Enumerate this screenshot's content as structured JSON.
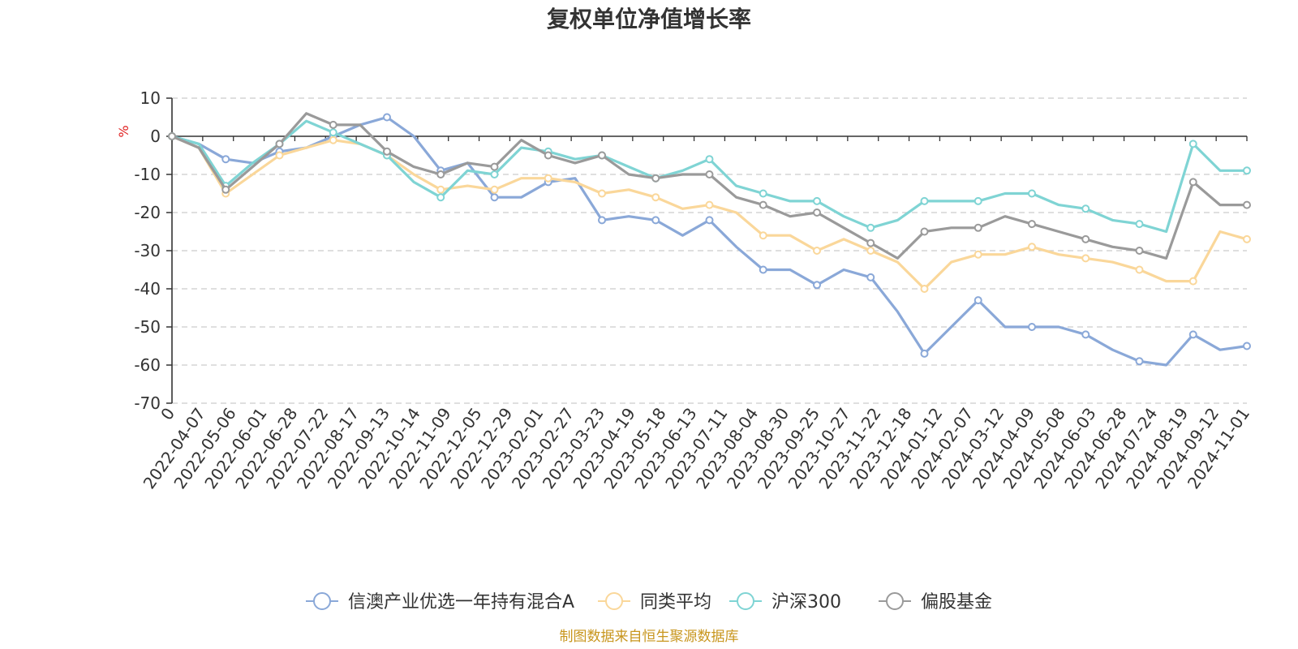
{
  "chart_data": {
    "type": "line",
    "title": "复权单位净值增长率",
    "ylabel": "%",
    "ylim": [
      -70,
      10
    ],
    "yticks": [
      10,
      0,
      -10,
      -20,
      -30,
      -40,
      -50,
      -60,
      -70
    ],
    "x_tick_labels": [
      "0",
      "2022-04-07",
      "2022-05-06",
      "2022-06-01",
      "2022-06-28",
      "2022-07-22",
      "2022-08-17",
      "2022-09-13",
      "2022-10-14",
      "2022-11-09",
      "2022-12-05",
      "2022-12-29",
      "2023-02-01",
      "2023-02-27",
      "2023-03-23",
      "2023-04-19",
      "2023-05-18",
      "2023-06-13",
      "2023-07-11",
      "2023-08-04",
      "2023-08-30",
      "2023-09-25",
      "2023-10-27",
      "2023-11-22",
      "2023-12-18",
      "2024-01-12",
      "2024-02-07",
      "2024-03-12",
      "2024-04-09",
      "2024-05-08",
      "2024-06-03",
      "2024-06-28",
      "2024-07-24",
      "2024-08-19",
      "2024-09-12",
      "2024-11-01"
    ],
    "grid": true,
    "legend_position": "bottom",
    "series": [
      {
        "name": "信澳产业优选一年持有混合A",
        "color": "#8aa8d8",
        "values": [
          0,
          -2,
          -6,
          -7,
          -4,
          -3,
          0,
          3,
          5,
          0,
          -9,
          -7,
          -16,
          -16,
          -12,
          -11,
          -22,
          -21,
          -22,
          -26,
          -22,
          -29,
          -35,
          -35,
          -39,
          -35,
          -37,
          -46,
          -57,
          -50,
          -43,
          -50,
          -50,
          -50,
          -52,
          -56,
          -59,
          -60,
          -52,
          -56,
          -55
        ]
      },
      {
        "name": "同类平均",
        "color": "#fad79a",
        "values": [
          0,
          -3,
          -15,
          -10,
          -5,
          -3,
          -1,
          -2,
          -5,
          -10,
          -14,
          -13,
          -14,
          -11,
          -11,
          -12,
          -15,
          -14,
          -16,
          -19,
          -18,
          -20,
          -26,
          -26,
          -30,
          -27,
          -30,
          -33,
          -40,
          -33,
          -31,
          -31,
          -29,
          -31,
          -32,
          -33,
          -35,
          -38,
          -38,
          -25,
          -27
        ]
      },
      {
        "name": "沪深300",
        "color": "#7fd4d4",
        "values": [
          0,
          -2,
          -13,
          -7,
          -2,
          4,
          1,
          -2,
          -5,
          -12,
          -16,
          -9,
          -10,
          -3,
          -4,
          -6,
          -5,
          -8,
          -11,
          -9,
          -6,
          -13,
          -15,
          -17,
          -17,
          -21,
          -24,
          -22,
          -17,
          -17,
          -17,
          -15,
          -15,
          -18,
          -19,
          -22,
          -23,
          -25,
          -2,
          -9,
          -9
        ]
      },
      {
        "name": "偏股基金",
        "color": "#9a9a9a",
        "values": [
          0,
          -3,
          -14,
          -8,
          -2,
          6,
          3,
          3,
          -4,
          -8,
          -10,
          -7,
          -8,
          -1,
          -5,
          -7,
          -5,
          -10,
          -11,
          -10,
          -10,
          -16,
          -18,
          -21,
          -20,
          -24,
          -28,
          -32,
          -25,
          -24,
          -24,
          -21,
          -23,
          -25,
          -27,
          -29,
          -30,
          -32,
          -12,
          -18,
          -18
        ]
      }
    ]
  },
  "footer": {
    "source": "制图数据来自恒生聚源数据库"
  }
}
